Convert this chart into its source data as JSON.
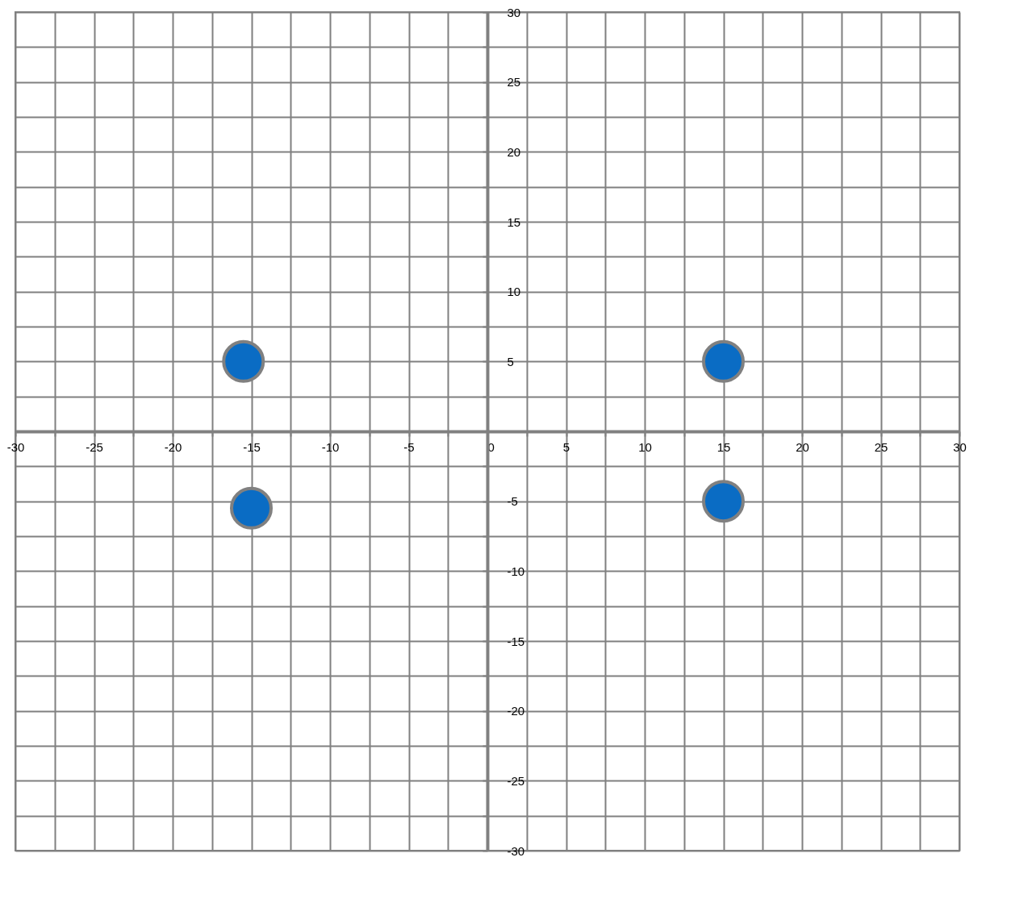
{
  "chart_data": {
    "type": "scatter",
    "x": [
      -15.5,
      15,
      -15,
      15
    ],
    "series": [
      {
        "color": "#0a6cc4",
        "values": [
          5,
          5,
          -5.5,
          -5
        ]
      }
    ],
    "marker": "circle",
    "grid": true,
    "xlim": [
      -30,
      30
    ],
    "ylim": [
      -30,
      30
    ],
    "xticks": [
      -30,
      {
        "value": -27.5,
        "label": null
      },
      -25,
      {
        "value": -22.5,
        "label": null
      },
      -20,
      {
        "value": -17.5,
        "label": null
      },
      -15,
      {
        "value": -12.5,
        "label": null
      },
      -10,
      {
        "value": -7.5,
        "label": null
      },
      -5,
      {
        "value": -2.5,
        "label": null
      },
      0,
      {
        "value": 2.5,
        "label": null
      },
      5,
      {
        "value": 7.5,
        "label": null
      },
      10,
      {
        "value": 12.5,
        "label": null
      },
      15,
      {
        "value": 17.5,
        "label": null
      },
      20,
      {
        "value": 22.5,
        "label": null
      },
      25,
      {
        "value": 27.5,
        "label": null
      },
      30
    ],
    "yticks": [
      -30,
      {
        "value": -27.5,
        "label": null
      },
      -25,
      {
        "value": -22.5,
        "label": null
      },
      -20,
      {
        "value": -17.5,
        "label": null
      },
      -15,
      {
        "value": -12.5,
        "label": null
      },
      -10,
      {
        "value": -7.5,
        "label": null
      },
      -5,
      {
        "value": -2.5,
        "label": null
      },
      {
        "value": 0,
        "label": null
      },
      {
        "value": 2.5,
        "label": null
      },
      5,
      {
        "value": 7.5,
        "label": null
      },
      10,
      {
        "value": 12.5,
        "label": null
      },
      15,
      {
        "value": 17.5,
        "label": null
      },
      20,
      {
        "value": 22.5,
        "label": null
      },
      25,
      {
        "value": 27.5,
        "label": null
      },
      30
    ]
  }
}
